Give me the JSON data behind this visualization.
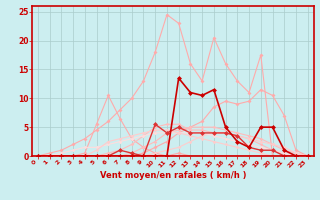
{
  "xlabel": "Vent moyen/en rafales ( km/h )",
  "xlim": [
    -0.5,
    23.5
  ],
  "ylim": [
    0,
    26
  ],
  "yticks": [
    0,
    5,
    10,
    15,
    20,
    25
  ],
  "xticks": [
    0,
    1,
    2,
    3,
    4,
    5,
    6,
    7,
    8,
    9,
    10,
    11,
    12,
    13,
    14,
    15,
    16,
    17,
    18,
    19,
    20,
    21,
    22,
    23
  ],
  "bg_color": "#cceef0",
  "grid_color": "#aacccc",
  "lines": [
    {
      "x": [
        0,
        1,
        2,
        3,
        4,
        5,
        6,
        7,
        8,
        9,
        10,
        11,
        12,
        13,
        14,
        15,
        16,
        17,
        18,
        19,
        20,
        21,
        22,
        23
      ],
      "y": [
        0,
        0.5,
        1,
        2,
        3,
        4.5,
        6,
        8,
        10,
        13,
        18,
        24.5,
        23,
        16,
        13,
        20.5,
        16,
        13,
        11,
        17.5,
        0,
        0,
        0,
        0
      ],
      "color": "#ffaaaa",
      "lw": 0.8,
      "marker": "D",
      "ms": 2.0
    },
    {
      "x": [
        0,
        1,
        2,
        3,
        4,
        5,
        6,
        7,
        8,
        9,
        10,
        11,
        12,
        13,
        14,
        15,
        16,
        17,
        18,
        19,
        20,
        21,
        22,
        23
      ],
      "y": [
        0,
        0,
        0,
        0,
        0,
        0,
        0,
        0,
        0,
        0.5,
        1.5,
        2.5,
        4,
        5,
        6,
        8.5,
        9.5,
        9,
        9.5,
        11.5,
        10.5,
        7,
        1,
        0
      ],
      "color": "#ffaaaa",
      "lw": 0.8,
      "marker": "D",
      "ms": 2.0
    },
    {
      "x": [
        0,
        1,
        2,
        3,
        4,
        5,
        6,
        7,
        8,
        9,
        10,
        11,
        12,
        13,
        14,
        15,
        16,
        17,
        18,
        19,
        20,
        21,
        22,
        23
      ],
      "y": [
        0,
        0,
        0,
        0,
        0.5,
        5.5,
        10.5,
        6.5,
        3,
        1.5,
        0.5,
        0,
        0.5,
        0,
        0,
        0,
        0,
        0,
        0,
        0,
        0,
        0,
        0,
        0
      ],
      "color": "#ffaaaa",
      "lw": 0.8,
      "marker": "D",
      "ms": 2.0
    },
    {
      "x": [
        0,
        1,
        2,
        3,
        4,
        5,
        6,
        7,
        8,
        9,
        10,
        11,
        12,
        13,
        14,
        15,
        16,
        17,
        18,
        19,
        20,
        21,
        22,
        23
      ],
      "y": [
        0,
        0,
        0,
        0,
        0,
        0,
        0.5,
        1,
        2,
        3.5,
        5,
        5.5,
        5.5,
        4.5,
        4.5,
        4,
        4,
        3.5,
        3,
        2,
        1,
        0.5,
        0,
        0
      ],
      "color": "#ffbbbb",
      "lw": 0.8,
      "marker": "D",
      "ms": 1.8
    },
    {
      "x": [
        0,
        1,
        2,
        3,
        4,
        5,
        6,
        7,
        8,
        9,
        10,
        11,
        12,
        13,
        14,
        15,
        16,
        17,
        18,
        19,
        20,
        21,
        22,
        23
      ],
      "y": [
        0,
        0,
        0,
        0,
        0,
        0,
        0,
        0,
        0.5,
        1.5,
        2.5,
        4,
        4.5,
        5,
        5,
        5,
        4.5,
        4,
        3.5,
        3,
        2,
        1,
        0.5,
        0
      ],
      "color": "#ffbbbb",
      "lw": 0.8,
      "marker": "D",
      "ms": 1.8
    },
    {
      "x": [
        0,
        1,
        2,
        3,
        4,
        5,
        6,
        7,
        8,
        9,
        10,
        11,
        12,
        13,
        14,
        15,
        16,
        17,
        18,
        19,
        20,
        21,
        22,
        23
      ],
      "y": [
        0,
        0,
        0,
        0,
        0,
        0,
        0,
        0,
        0,
        0,
        0.5,
        1,
        1.5,
        2.5,
        3.5,
        4,
        4,
        3.5,
        3,
        2.5,
        2,
        1.5,
        0.5,
        0
      ],
      "color": "#ffcccc",
      "lw": 0.8,
      "marker": "D",
      "ms": 1.8
    },
    {
      "x": [
        0,
        1,
        2,
        3,
        4,
        5,
        6,
        7,
        8,
        9,
        10,
        11,
        12,
        13,
        14,
        15,
        16,
        17,
        18,
        19,
        20,
        21,
        22,
        23
      ],
      "y": [
        0,
        0,
        0.5,
        1,
        1.5,
        1.5,
        2,
        2.5,
        3,
        3.5,
        4,
        4,
        4,
        4,
        4,
        3.5,
        3,
        2.5,
        2,
        1.5,
        1,
        0.5,
        0,
        0
      ],
      "color": "#ffdddd",
      "lw": 0.8,
      "marker": "D",
      "ms": 1.8
    },
    {
      "x": [
        0,
        1,
        2,
        3,
        4,
        5,
        6,
        7,
        8,
        9,
        10,
        11,
        12,
        13,
        14,
        15,
        16,
        17,
        18,
        19,
        20,
        21,
        22,
        23
      ],
      "y": [
        0,
        0,
        0,
        0,
        0,
        1,
        2.5,
        3,
        3.5,
        4,
        4.5,
        4.5,
        4,
        3.5,
        3,
        2.5,
        2,
        1.5,
        1,
        0.5,
        0,
        0,
        0,
        0
      ],
      "color": "#ffcccc",
      "lw": 0.8,
      "marker": "D",
      "ms": 1.8
    },
    {
      "x": [
        0,
        1,
        2,
        3,
        4,
        5,
        6,
        7,
        8,
        9,
        10,
        11,
        12,
        13,
        14,
        15,
        16,
        17,
        18,
        19,
        20,
        21,
        22,
        23
      ],
      "y": [
        0,
        0,
        0,
        0,
        0,
        0,
        0,
        1,
        0.5,
        0,
        5.5,
        4,
        5,
        4,
        4,
        4,
        4,
        3.5,
        1.5,
        1,
        1,
        0,
        0,
        0
      ],
      "color": "#dd3333",
      "lw": 1.0,
      "marker": "D",
      "ms": 2.5
    },
    {
      "x": [
        0,
        1,
        2,
        3,
        4,
        5,
        6,
        7,
        8,
        9,
        10,
        11,
        12,
        13,
        14,
        15,
        16,
        17,
        18,
        19,
        20,
        21,
        22,
        23
      ],
      "y": [
        0,
        0,
        0,
        0,
        0,
        0,
        0,
        0,
        0,
        0,
        0,
        0,
        13.5,
        11,
        10.5,
        11.5,
        5,
        2.5,
        1.5,
        5,
        5,
        1,
        0,
        0
      ],
      "color": "#cc0000",
      "lw": 1.2,
      "marker": "D",
      "ms": 2.5
    }
  ]
}
